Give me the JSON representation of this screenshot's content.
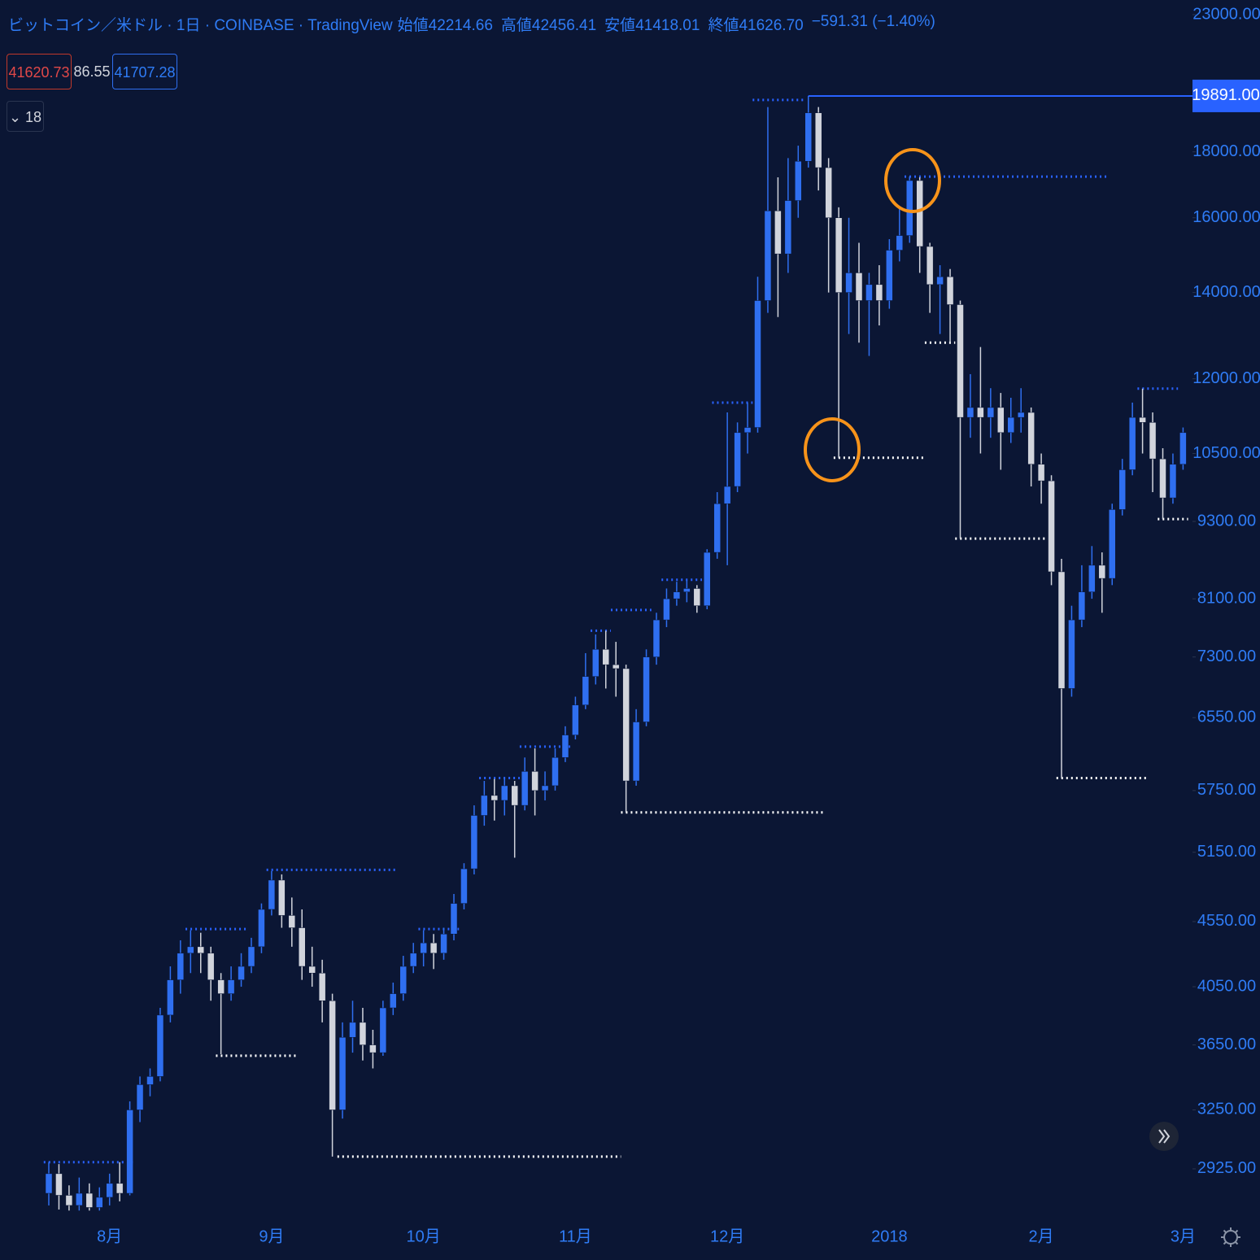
{
  "chart_data": {
    "type": "candlestick",
    "title": "ビットコイン／米ドル · 1日 · COINBASE · TradingView",
    "legend": [
      {
        "label": "始値",
        "value": "42214.66"
      },
      {
        "label": "高値",
        "value": "42456.41"
      },
      {
        "label": "安値",
        "value": "41418.01"
      },
      {
        "label": "終値",
        "value": "41626.70"
      }
    ],
    "change": "−591.31 (−1.40%)",
    "sell_price": "41620.73",
    "spread": "86.55",
    "buy_price": "41707.28",
    "indicator_count": "18",
    "log_scale": true,
    "up_color": "#2f6ff0",
    "down_color": "#d1d4dc",
    "categories": [
      null,
      null,
      null,
      null,
      null,
      null,
      "8月",
      null,
      null,
      null,
      null,
      null,
      null,
      null,
      null,
      null,
      null,
      null,
      null,
      null,
      null,
      null,
      "9月",
      null,
      null,
      null,
      null,
      null,
      null,
      null,
      null,
      null,
      null,
      null,
      null,
      null,
      null,
      "10月",
      null,
      null,
      null,
      null,
      null,
      null,
      null,
      null,
      null,
      null,
      null,
      null,
      null,
      null,
      "11月",
      null,
      null,
      null,
      null,
      null,
      null,
      null,
      null,
      null,
      null,
      null,
      null,
      null,
      null,
      "12月",
      null,
      null,
      null,
      null,
      null,
      null,
      null,
      null,
      null,
      null,
      null,
      null,
      null,
      null,
      null,
      "2018",
      null,
      null,
      null,
      null,
      null,
      null,
      null,
      null,
      null,
      null,
      null,
      null,
      null,
      null,
      "2月",
      null,
      null,
      null,
      null,
      null,
      null,
      null,
      null,
      null,
      null,
      null,
      null,
      null,
      "3月"
    ],
    "open": [
      2800,
      2900,
      2790,
      2740,
      2800,
      2730,
      2780,
      2850,
      2800,
      3250,
      3400,
      3450,
      3850,
      4100,
      4300,
      4350,
      4300,
      4100,
      4000,
      4100,
      4200,
      4350,
      4650,
      4900,
      4600,
      4500,
      4200,
      4150,
      3950,
      3250,
      3700,
      3800,
      3650,
      3600,
      3900,
      4000,
      4200,
      4300,
      4380,
      4300,
      4450,
      4700,
      5000,
      5500,
      5700,
      5650,
      5800,
      5600,
      5950,
      5750,
      5800,
      6100,
      6350,
      6700,
      7050,
      7400,
      7200,
      7150,
      5850,
      6500,
      7300,
      7800,
      8100,
      8200,
      8250,
      8000,
      8800,
      9600,
      9900,
      10900,
      11000,
      13800,
      16200,
      15000,
      16500,
      17700,
      19300,
      17500,
      16000,
      14000,
      14500,
      13800,
      14200,
      13800,
      15100,
      15500,
      17100,
      15200,
      14200,
      14400,
      13700,
      11200,
      11400,
      11200,
      11400,
      10900,
      11200,
      11300,
      10300,
      10000,
      8500,
      6900,
      7800,
      8200,
      8600,
      8400,
      9500,
      10200,
      11200,
      11100,
      10400,
      9700,
      10300
    ],
    "high": [
      2960,
      2950,
      2840,
      2880,
      2850,
      2830,
      2900,
      2960,
      3300,
      3450,
      3500,
      3900,
      4200,
      4400,
      4480,
      4460,
      4350,
      4150,
      4200,
      4300,
      4420,
      4700,
      4980,
      4950,
      4750,
      4650,
      4350,
      4250,
      4000,
      3800,
      3950,
      3900,
      3750,
      3950,
      4080,
      4280,
      4380,
      4480,
      4450,
      4500,
      4780,
      5050,
      5600,
      5850,
      5870,
      5880,
      5850,
      6100,
      6200,
      5950,
      6200,
      6450,
      6800,
      7350,
      7600,
      7650,
      7500,
      7200,
      6650,
      7400,
      7900,
      8250,
      8350,
      8370,
      8300,
      8850,
      9800,
      11300,
      11100,
      11500,
      14400,
      19500,
      17200,
      17800,
      18200,
      19891,
      19500,
      17800,
      16300,
      16000,
      15300,
      14500,
      14700,
      15400,
      16300,
      17224,
      17200,
      15300,
      14700,
      14600,
      13800,
      12100,
      12700,
      11800,
      11700,
      11600,
      11800,
      11400,
      10500,
      10100,
      8700,
      8000,
      8600,
      8900,
      8800,
      9600,
      10400,
      11500,
      11790,
      11300,
      10600,
      10500,
      11000
    ],
    "low": [
      2740,
      2720,
      2715,
      2715,
      2715,
      2715,
      2740,
      2760,
      2790,
      3180,
      3330,
      3420,
      3800,
      4000,
      4150,
      4150,
      3950,
      3590,
      3950,
      4050,
      4150,
      4300,
      4600,
      4500,
      4350,
      4100,
      4050,
      3800,
      2990,
      3200,
      3600,
      3550,
      3500,
      3580,
      3850,
      3950,
      4150,
      4200,
      4180,
      4250,
      4400,
      4650,
      4950,
      5400,
      5450,
      5500,
      5100,
      5550,
      5500,
      5650,
      5750,
      6050,
      6300,
      6650,
      6950,
      6900,
      6800,
      5530,
      5800,
      6450,
      7200,
      7700,
      8000,
      8050,
      7900,
      7950,
      8700,
      8600,
      9800,
      10500,
      10900,
      13500,
      13400,
      14500,
      16000,
      17500,
      16800,
      14000,
      10420,
      13000,
      12800,
      12500,
      13200,
      13600,
      14800,
      15300,
      14500,
      13500,
      13000,
      12800,
      9020,
      10800,
      10500,
      10800,
      10200,
      10700,
      10900,
      9900,
      9600,
      8300,
      5880,
      6800,
      7700,
      8100,
      7900,
      8300,
      9400,
      10100,
      10500,
      9800,
      9340,
      9600,
      10200
    ],
    "close": [
      2900,
      2790,
      2740,
      2800,
      2730,
      2780,
      2850,
      2800,
      3250,
      3400,
      3450,
      3850,
      4100,
      4300,
      4350,
      4300,
      4100,
      4000,
      4100,
      4200,
      4350,
      4650,
      4900,
      4600,
      4500,
      4200,
      4150,
      3950,
      3250,
      3700,
      3800,
      3650,
      3600,
      3900,
      4000,
      4200,
      4300,
      4380,
      4300,
      4450,
      4700,
      5000,
      5500,
      5700,
      5650,
      5800,
      5600,
      5950,
      5750,
      5800,
      6100,
      6350,
      6700,
      7050,
      7400,
      7200,
      7150,
      5850,
      6500,
      7300,
      7800,
      8100,
      8200,
      8250,
      8000,
      8800,
      9600,
      9900,
      10900,
      11000,
      13800,
      16200,
      15000,
      16500,
      17700,
      19300,
      17500,
      16000,
      14000,
      14500,
      13800,
      14200,
      13800,
      15100,
      15500,
      17100,
      15200,
      14200,
      14400,
      13700,
      11200,
      11400,
      11200,
      11400,
      10900,
      11200,
      11300,
      10300,
      10000,
      8500,
      6900,
      7800,
      8200,
      8600,
      8400,
      9500,
      10200,
      11200,
      11100,
      10400,
      9700,
      10300,
      10900
    ],
    "pivot_highs": {
      "color": "#2962ff",
      "values": [
        2960,
        2960,
        2960,
        2960,
        2960,
        2960,
        2960,
        2960,
        2960,
        null,
        null,
        null,
        null,
        null,
        4490,
        4490,
        4490,
        4490,
        4490,
        4490,
        null,
        null,
        4990,
        4990,
        4990,
        4990,
        4990,
        4990,
        4990,
        4990,
        4990,
        4990,
        4990,
        4990,
        4990,
        null,
        null,
        4490,
        4490,
        4490,
        4490,
        null,
        null,
        5880,
        5880,
        5880,
        5880,
        6220,
        6220,
        6220,
        6220,
        6220,
        null,
        null,
        7650,
        7650,
        7940,
        7940,
        7940,
        7940,
        null,
        8380,
        8380,
        8380,
        8380,
        null,
        11500,
        11500,
        11500,
        11500,
        19750,
        19750,
        19750,
        19750,
        19750,
        null,
        null,
        null,
        null,
        null,
        null,
        null,
        null,
        null,
        null,
        17220,
        17220,
        17220,
        17220,
        17220,
        17220,
        17220,
        17220,
        17220,
        17220,
        17220,
        17220,
        17220,
        17220,
        17220,
        17220,
        17220,
        17220,
        17220,
        17220,
        null,
        null,
        null,
        11790,
        11790,
        11790,
        11790,
        null
      ]
    },
    "pivot_lows": {
      "color": "#ffffff",
      "values": [
        null,
        null,
        null,
        null,
        null,
        null,
        null,
        null,
        null,
        null,
        null,
        null,
        null,
        null,
        null,
        null,
        null,
        3580,
        3580,
        3580,
        3580,
        3580,
        3580,
        3580,
        3580,
        null,
        null,
        null,
        null,
        2990,
        2990,
        2990,
        2990,
        2990,
        2990,
        2990,
        2990,
        2990,
        2990,
        2990,
        2990,
        2990,
        2990,
        2990,
        2990,
        2990,
        2990,
        2990,
        2990,
        2990,
        2990,
        2990,
        2990,
        2990,
        2990,
        2990,
        2990,
        5530,
        5530,
        5530,
        5530,
        5530,
        5530,
        5530,
        5530,
        5530,
        5530,
        5530,
        5530,
        5530,
        5530,
        5530,
        5530,
        5530,
        5530,
        5530,
        5530,
        null,
        10420,
        10420,
        10420,
        10420,
        10420,
        10420,
        10420,
        10420,
        10420,
        12800,
        12800,
        12800,
        9020,
        9020,
        9020,
        9020,
        9020,
        9020,
        9020,
        9020,
        9020,
        null,
        5880,
        5880,
        5880,
        5880,
        5880,
        5880,
        5880,
        5880,
        5880,
        null,
        9340,
        9340,
        9340
      ]
    },
    "price_line": {
      "value": 19891,
      "label": "19891.00",
      "color": "#2962ff"
    },
    "ylim": [
      2708,
      23610
    ],
    "yticks": [
      {
        "value": 23000,
        "label": "23000.00"
      },
      {
        "value": 18000,
        "label": "18000.00"
      },
      {
        "value": 16000,
        "label": "16000.00"
      },
      {
        "value": 14000,
        "label": "14000.00"
      },
      {
        "value": 12000,
        "label": "12000.00"
      },
      {
        "value": 10500,
        "label": "10500.00"
      },
      {
        "value": 9300,
        "label": "9300.00"
      },
      {
        "value": 8100,
        "label": "8100.00"
      },
      {
        "value": 7300,
        "label": "7300.00"
      },
      {
        "value": 6550,
        "label": "6550.00"
      },
      {
        "value": 5750,
        "label": "5750.00"
      },
      {
        "value": 5150,
        "label": "5150.00"
      },
      {
        "value": 4550,
        "label": "4550.00"
      },
      {
        "value": 4050,
        "label": "4050.00"
      },
      {
        "value": 3650,
        "label": "3650.00"
      },
      {
        "value": 3250,
        "label": "3250.00"
      },
      {
        "value": 2925,
        "label": "2925.00"
      }
    ],
    "grid": false
  }
}
